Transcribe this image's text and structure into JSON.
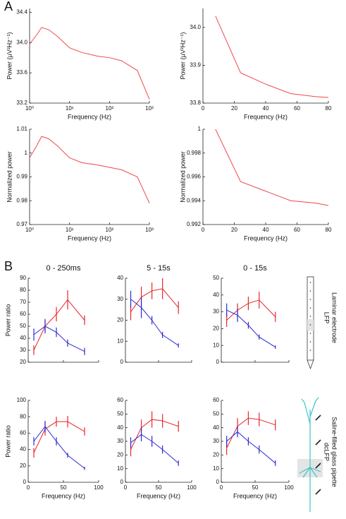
{
  "panel_labels": [
    "A",
    "B"
  ],
  "side_labels": [
    [
      "Laminar electrode",
      "LFP"
    ],
    [
      "Saline-filled glass pipette",
      "dcLFP"
    ]
  ],
  "chart_data": [
    {
      "type": "line",
      "xscale": "log",
      "xlabel": "Frequency (Hz)",
      "ylabel": "Power (µV²Hz⁻¹)",
      "x": [
        1,
        1.5,
        2,
        3,
        5,
        10,
        20,
        50,
        100,
        200,
        500,
        1000
      ],
      "series": [
        {
          "color": "#f0484a",
          "values": [
            33.98,
            34.1,
            34.2,
            34.17,
            34.08,
            33.93,
            33.87,
            33.82,
            33.8,
            33.76,
            33.63,
            33.25
          ]
        }
      ],
      "xlim": [
        1,
        1000
      ],
      "xticks": [
        {
          "value": 1,
          "label": "10⁰"
        },
        {
          "value": 10,
          "label": "10¹"
        },
        {
          "value": 100,
          "label": "10²"
        },
        {
          "value": 1000,
          "label": "10³"
        }
      ],
      "ylim": [
        33.2,
        34.45
      ],
      "yticks": [
        33.2,
        33.6,
        {
          "value": 34,
          "label": "34.0"
        },
        34.4
      ]
    },
    {
      "type": "line",
      "xlabel": "Frequency (Hz)",
      "ylabel": "Power (µV²Hz⁻¹)",
      "x": [
        8,
        24,
        40,
        56,
        72,
        80
      ],
      "series": [
        {
          "color": "#f0484a",
          "values": [
            34.03,
            33.88,
            33.85,
            33.825,
            33.817,
            33.815
          ]
        }
      ],
      "xlim": [
        0,
        80
      ],
      "xticks": [
        0,
        20,
        40,
        60,
        80
      ],
      "ylim": [
        33.8,
        34.05
      ],
      "yticks": [
        33.8,
        33.9,
        {
          "value": 34,
          "label": "34.0"
        }
      ]
    },
    {
      "type": "line",
      "xscale": "log",
      "xlabel": "Frequency (Hz)",
      "ylabel": "Normalized power",
      "x": [
        1,
        1.5,
        2,
        3,
        5,
        10,
        20,
        50,
        100,
        200,
        500,
        1000
      ],
      "series": [
        {
          "color": "#f0484a",
          "values": [
            0.998,
            1.003,
            1.007,
            1.006,
            1.003,
            0.998,
            0.996,
            0.995,
            0.994,
            0.993,
            0.99,
            0.979
          ]
        }
      ],
      "xlim": [
        1,
        1000
      ],
      "xticks": [
        {
          "value": 1,
          "label": "10⁰"
        },
        {
          "value": 10,
          "label": "10¹"
        },
        {
          "value": 100,
          "label": "10²"
        },
        {
          "value": 1000,
          "label": "10³"
        }
      ],
      "ylim": [
        0.97,
        1.01
      ],
      "yticks": [
        0.97,
        0.98,
        0.99,
        1,
        1.01
      ]
    },
    {
      "type": "line",
      "xlabel": "Frequency (Hz)",
      "ylabel": "Normalized power",
      "x": [
        8,
        24,
        40,
        56,
        72,
        80
      ],
      "series": [
        {
          "color": "#f0484a",
          "values": [
            1,
            0.9956,
            0.9948,
            0.994,
            0.9938,
            0.9936
          ]
        }
      ],
      "xlim": [
        0,
        80
      ],
      "xticks": [
        0,
        20,
        40,
        60,
        80
      ],
      "ylim": [
        0.992,
        1
      ],
      "yticks": [
        0.992,
        0.994,
        0.996,
        0.998,
        1
      ]
    },
    {
      "type": "errorline",
      "title": "0 - 250ms",
      "ylabel": "Power ratio",
      "xticklabels": false,
      "x": [
        8,
        24,
        40,
        56,
        80
      ],
      "series": [
        {
          "color": "#e8262a",
          "values": [
            30,
            50,
            60,
            72,
            55
          ],
          "errors": [
            4,
            5,
            6,
            8,
            4
          ]
        },
        {
          "color": "#2b2bd6",
          "values": [
            43,
            50,
            45,
            36,
            29
          ],
          "errors": [
            5,
            6,
            4,
            3,
            3
          ]
        }
      ],
      "xlim": [
        0,
        100
      ],
      "xticks": [
        0,
        50,
        100
      ],
      "ylim": [
        20,
        90
      ],
      "yticks": [
        20,
        30,
        40,
        50,
        60,
        70,
        80,
        90
      ]
    },
    {
      "type": "errorline",
      "title": "5 - 15s",
      "xticklabels": false,
      "x": [
        8,
        24,
        40,
        56,
        80
      ],
      "series": [
        {
          "color": "#e8262a",
          "values": [
            24,
            31,
            34,
            35,
            26
          ],
          "errors": [
            4,
            5,
            4,
            5,
            3
          ]
        },
        {
          "color": "#2b2bd6",
          "values": [
            30,
            26,
            20,
            13,
            8
          ],
          "errors": [
            4,
            5,
            2,
            1.5,
            1
          ]
        }
      ],
      "xlim": [
        0,
        100
      ],
      "xticks": [
        0,
        50,
        100
      ],
      "ylim": [
        0,
        40
      ],
      "yticks": [
        0,
        10,
        20,
        30,
        40
      ]
    },
    {
      "type": "errorline",
      "title": "0 - 15s",
      "xticklabels": false,
      "x": [
        8,
        24,
        40,
        56,
        80
      ],
      "series": [
        {
          "color": "#e8262a",
          "values": [
            25,
            31,
            35,
            37,
            27
          ],
          "errors": [
            4,
            4,
            4,
            5,
            3
          ]
        },
        {
          "color": "#2b2bd6",
          "values": [
            31,
            28,
            22,
            15,
            9
          ],
          "errors": [
            4,
            4,
            2,
            1.5,
            1
          ]
        }
      ],
      "xlim": [
        0,
        100
      ],
      "xticks": [
        0,
        50,
        100
      ],
      "ylim": [
        0,
        50
      ],
      "yticks": [
        0,
        10,
        20,
        30,
        40,
        50
      ]
    },
    {
      "type": "errorline",
      "ylabel": "Power ratio",
      "xlabel": "Frequency (Hz)",
      "x": [
        8,
        24,
        40,
        56,
        80
      ],
      "series": [
        {
          "color": "#e8262a",
          "values": [
            36,
            65,
            74,
            74,
            62
          ],
          "errors": [
            6,
            8,
            6,
            7,
            5
          ]
        },
        {
          "color": "#2b2bd6",
          "values": [
            50,
            68,
            50,
            33,
            17
          ],
          "errors": [
            5,
            7,
            5,
            3,
            2
          ]
        }
      ],
      "xlim": [
        0,
        100
      ],
      "xticks": [
        0,
        50,
        100
      ],
      "ylim": [
        0,
        100
      ],
      "yticks": [
        0,
        20,
        40,
        60,
        80,
        100
      ]
    },
    {
      "type": "errorline",
      "xlabel": "Frequency (Hz)",
      "x": [
        8,
        24,
        40,
        56,
        80
      ],
      "series": [
        {
          "color": "#e8262a",
          "values": [
            24,
            40,
            46,
            45,
            41
          ],
          "errors": [
            5,
            6,
            6,
            5,
            4
          ]
        },
        {
          "color": "#2b2bd6",
          "values": [
            29,
            35,
            30,
            24,
            14
          ],
          "errors": [
            4,
            5,
            4,
            3,
            2
          ]
        }
      ],
      "xlim": [
        0,
        100
      ],
      "xticks": [
        0,
        50,
        100
      ],
      "ylim": [
        0,
        60
      ],
      "yticks": [
        0,
        10,
        20,
        30,
        40,
        50,
        60
      ]
    },
    {
      "type": "errorline",
      "xlabel": "Frequency (Hz)",
      "x": [
        8,
        24,
        40,
        56,
        80
      ],
      "series": [
        {
          "color": "#e8262a",
          "values": [
            25,
            41,
            47,
            46,
            42
          ],
          "errors": [
            5,
            6,
            5,
            5,
            4
          ]
        },
        {
          "color": "#2b2bd6",
          "values": [
            30,
            37,
            30,
            24,
            14
          ],
          "errors": [
            4,
            4,
            3,
            3,
            2
          ]
        }
      ],
      "xlim": [
        0,
        100
      ],
      "xticks": [
        0,
        50,
        100
      ],
      "ylim": [
        0,
        60
      ],
      "yticks": [
        0,
        10,
        20,
        30,
        40,
        50,
        60
      ]
    }
  ]
}
